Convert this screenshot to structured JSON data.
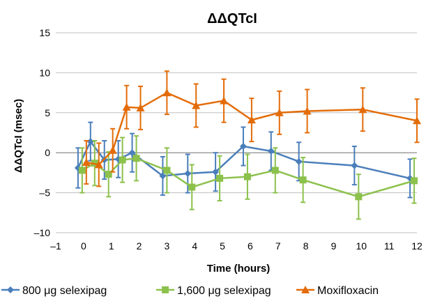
{
  "chart_data": {
    "type": "line",
    "title": "ΔΔQTcI",
    "xlabel": "Time (hours)",
    "ylabel": "ΔΔQTcI (msec)",
    "xlim": [
      -1,
      12
    ],
    "ylim": [
      -10,
      15
    ],
    "x_ticks": [
      "–1",
      "0",
      "1",
      "2",
      "3",
      "4",
      "5",
      "6",
      "7",
      "8",
      "9",
      "10",
      "11",
      "12"
    ],
    "y_ticks": [
      "–10",
      "–5",
      "0",
      "5",
      "10",
      "15"
    ],
    "grid": "horizontal",
    "legend_position": "bottom",
    "series": [
      {
        "name": "800 μg selexipag",
        "color": "#4a7ebb",
        "marker": "diamond",
        "points": [
          {
            "x": -0.2,
            "y": -1.9,
            "lo": -4.4,
            "hi": 0.6
          },
          {
            "x": 0.25,
            "y": 1.4,
            "lo": -1.0,
            "hi": 3.8
          },
          {
            "x": 0.75,
            "y": -0.9,
            "lo": -3.3,
            "hi": 1.5
          },
          {
            "x": 1.25,
            "y": -0.8,
            "lo": -3.1,
            "hi": 1.5
          },
          {
            "x": 1.75,
            "y": 0.0,
            "lo": -2.4,
            "hi": 2.4
          },
          {
            "x": 2.85,
            "y": -2.9,
            "lo": -5.3,
            "hi": -0.5
          },
          {
            "x": 3.75,
            "y": -2.6,
            "lo": -5.0,
            "hi": -0.2
          },
          {
            "x": 4.75,
            "y": -2.4,
            "lo": -4.8,
            "hi": 0.0
          },
          {
            "x": 5.75,
            "y": 0.8,
            "lo": -1.6,
            "hi": 3.2
          },
          {
            "x": 6.75,
            "y": 0.2,
            "lo": -2.2,
            "hi": 2.6
          },
          {
            "x": 7.75,
            "y": -1.1,
            "lo": -3.5,
            "hi": 1.3
          },
          {
            "x": 9.75,
            "y": -1.6,
            "lo": -4.0,
            "hi": 0.8
          },
          {
            "x": 11.75,
            "y": -3.2,
            "lo": -5.6,
            "hi": -0.8
          }
        ]
      },
      {
        "name": "1,600 μg selexipag",
        "color": "#8cc14c",
        "marker": "square",
        "points": [
          {
            "x": -0.05,
            "y": -2.2,
            "lo": -5.0,
            "hi": 0.6
          },
          {
            "x": 0.4,
            "y": -1.3,
            "lo": -4.1,
            "hi": 1.5
          },
          {
            "x": 0.9,
            "y": -2.7,
            "lo": -5.5,
            "hi": 0.1
          },
          {
            "x": 1.4,
            "y": -0.9,
            "lo": -3.7,
            "hi": 1.9
          },
          {
            "x": 1.9,
            "y": -0.7,
            "lo": -3.5,
            "hi": 2.1
          },
          {
            "x": 3.0,
            "y": -2.2,
            "lo": -5.0,
            "hi": 0.6
          },
          {
            "x": 3.9,
            "y": -4.3,
            "lo": -7.1,
            "hi": -1.5
          },
          {
            "x": 4.9,
            "y": -3.2,
            "lo": -6.0,
            "hi": -0.4
          },
          {
            "x": 5.9,
            "y": -3.0,
            "lo": -5.8,
            "hi": -0.2
          },
          {
            "x": 6.9,
            "y": -2.2,
            "lo": -5.0,
            "hi": 0.6
          },
          {
            "x": 7.9,
            "y": -3.4,
            "lo": -6.2,
            "hi": -0.6
          },
          {
            "x": 9.9,
            "y": -5.5,
            "lo": -8.3,
            "hi": -2.7
          },
          {
            "x": 11.9,
            "y": -3.5,
            "lo": -6.3,
            "hi": -0.7
          }
        ]
      },
      {
        "name": "Moxifloxacin",
        "color": "#e36c09",
        "marker": "triangle",
        "points": [
          {
            "x": 0.1,
            "y": -1.2,
            "lo": -3.9,
            "hi": 1.5
          },
          {
            "x": 0.55,
            "y": -1.5,
            "lo": -4.2,
            "hi": 1.2
          },
          {
            "x": 1.05,
            "y": 0.3,
            "lo": -2.4,
            "hi": 3.0
          },
          {
            "x": 1.55,
            "y": 5.7,
            "lo": 3.0,
            "hi": 8.4
          },
          {
            "x": 2.05,
            "y": 5.6,
            "lo": 2.9,
            "hi": 8.3
          },
          {
            "x": 3.0,
            "y": 7.5,
            "lo": 4.8,
            "hi": 10.2
          },
          {
            "x": 4.05,
            "y": 5.9,
            "lo": 3.2,
            "hi": 8.6
          },
          {
            "x": 5.05,
            "y": 6.5,
            "lo": 3.8,
            "hi": 9.2
          },
          {
            "x": 6.05,
            "y": 4.1,
            "lo": 1.4,
            "hi": 6.8
          },
          {
            "x": 7.05,
            "y": 5.0,
            "lo": 2.3,
            "hi": 7.7
          },
          {
            "x": 8.05,
            "y": 5.2,
            "lo": 2.5,
            "hi": 7.9
          },
          {
            "x": 10.05,
            "y": 5.4,
            "lo": 2.7,
            "hi": 8.1
          },
          {
            "x": 12.0,
            "y": 4.0,
            "lo": 1.3,
            "hi": 6.7
          }
        ]
      }
    ]
  }
}
